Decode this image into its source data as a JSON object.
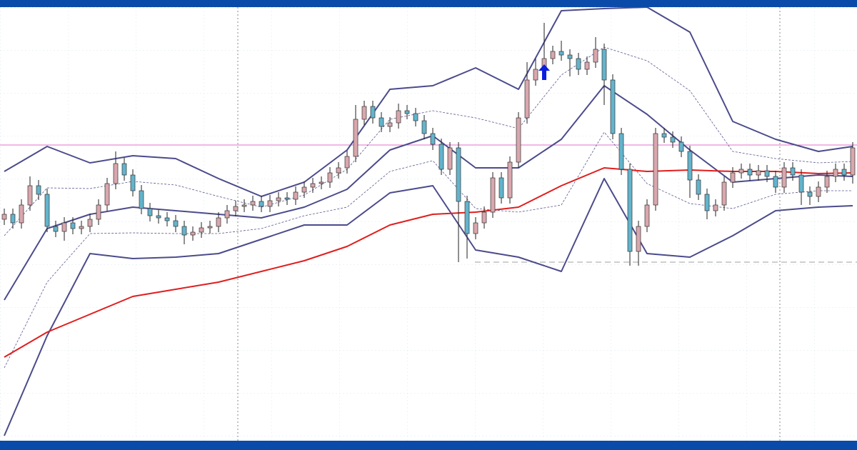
{
  "chart_data": {
    "type": "candlestick",
    "ylim": [
      0,
      607
    ],
    "open": [
      310,
      317,
      305,
      330,
      357,
      345,
      300,
      293,
      305,
      297,
      300,
      310,
      330,
      360,
      388,
      372,
      350,
      325,
      315,
      312,
      308,
      300,
      288,
      292,
      298,
      300,
      312,
      322,
      328,
      330,
      335,
      328,
      336,
      340,
      338,
      348,
      355,
      360,
      362,
      375,
      382,
      398,
      450,
      468,
      452,
      440,
      445,
      462,
      458,
      448,
      430,
      415,
      380,
      410,
      335,
      290,
      305,
      320,
      368,
      340,
      390,
      452,
      505,
      520,
      535,
      545,
      540,
      535,
      520,
      530,
      548,
      505,
      430,
      380,
      265,
      300,
      330,
      430,
      425,
      418,
      405,
      365,
      345,
      322,
      330,
      362,
      375,
      380,
      372,
      378,
      370,
      355,
      382,
      372,
      348,
      342,
      355,
      370,
      380,
      372
    ],
    "high": [
      325,
      325,
      338,
      370,
      365,
      353,
      308,
      313,
      313,
      308,
      318,
      338,
      368,
      405,
      396,
      380,
      358,
      333,
      323,
      320,
      316,
      308,
      300,
      306,
      308,
      320,
      330,
      336,
      338,
      343,
      343,
      344,
      348,
      348,
      356,
      363,
      368,
      370,
      383,
      390,
      406,
      470,
      476,
      476,
      460,
      453,
      472,
      470,
      466,
      456,
      438,
      423,
      418,
      418,
      343,
      313,
      328,
      376,
      376,
      398,
      460,
      530,
      535,
      585,
      553,
      560,
      548,
      543,
      538,
      565,
      556,
      513,
      438,
      388,
      308,
      338,
      438,
      438,
      433,
      426,
      413,
      373,
      353,
      338,
      370,
      383,
      388,
      388,
      386,
      386,
      378,
      390,
      390,
      380,
      356,
      363,
      378,
      388,
      388,
      418
    ],
    "low": [
      302,
      297,
      297,
      322,
      337,
      292,
      285,
      280,
      289,
      289,
      292,
      302,
      322,
      352,
      364,
      342,
      317,
      307,
      304,
      300,
      292,
      275,
      280,
      284,
      290,
      292,
      304,
      314,
      320,
      322,
      320,
      320,
      328,
      330,
      330,
      340,
      347,
      352,
      354,
      367,
      374,
      390,
      442,
      444,
      432,
      432,
      437,
      450,
      440,
      422,
      407,
      372,
      372,
      250,
      255,
      282,
      297,
      312,
      332,
      332,
      382,
      444,
      497,
      512,
      527,
      532,
      510,
      512,
      512,
      522,
      470,
      422,
      372,
      245,
      245,
      292,
      322,
      417,
      410,
      397,
      340,
      337,
      310,
      314,
      322,
      354,
      367,
      364,
      364,
      362,
      347,
      347,
      364,
      330,
      330,
      334,
      347,
      362,
      364,
      360
    ],
    "close": [
      317,
      305,
      330,
      357,
      345,
      300,
      293,
      305,
      297,
      300,
      310,
      330,
      360,
      388,
      372,
      350,
      325,
      315,
      312,
      308,
      300,
      288,
      292,
      298,
      300,
      312,
      322,
      328,
      330,
      335,
      328,
      336,
      340,
      338,
      348,
      355,
      360,
      362,
      375,
      382,
      398,
      450,
      468,
      452,
      440,
      445,
      462,
      458,
      448,
      430,
      415,
      380,
      410,
      335,
      290,
      305,
      320,
      368,
      340,
      390,
      452,
      505,
      520,
      535,
      545,
      540,
      535,
      520,
      530,
      548,
      505,
      430,
      380,
      265,
      300,
      330,
      430,
      425,
      418,
      405,
      365,
      345,
      322,
      330,
      362,
      375,
      380,
      372,
      378,
      370,
      355,
      382,
      372,
      348,
      342,
      355,
      370,
      380,
      372,
      410
    ],
    "up_color": "#d9a7ae",
    "down_color": "#63b4cc",
    "lines": [
      {
        "color": "#4b4b8c",
        "width": 2,
        "x": [
          0,
          5,
          10,
          15,
          20,
          25,
          30,
          35,
          40,
          45,
          50,
          55,
          60,
          65,
          70,
          75,
          80,
          85,
          90,
          95,
          99
        ],
        "values": [
          377,
          412,
          389,
          399,
          395,
          367,
          342,
          362,
          407,
          492,
          497,
          522,
          492,
          602,
          605,
          607,
          572,
          447,
          422,
          405,
          412
        ]
      },
      {
        "color": "#4b4b8c",
        "width": 2,
        "x": [
          0,
          5,
          10,
          15,
          20,
          25,
          30,
          35,
          40,
          45,
          50,
          55,
          60,
          65,
          70,
          75,
          80,
          85,
          90,
          95,
          99
        ],
        "values": [
          197,
          297,
          317,
          327,
          322,
          317,
          312,
          327,
          352,
          407,
          427,
          382,
          382,
          422,
          497,
          457,
          407,
          362,
          367,
          372,
          370
        ]
      },
      {
        "color": "#4b4b8c",
        "width": 2,
        "x": [
          0,
          5,
          10,
          15,
          20,
          25,
          30,
          35,
          40,
          45,
          50,
          55,
          60,
          65,
          70,
          75,
          80,
          85,
          90,
          95,
          99
        ],
        "values": [
          7,
          147,
          262,
          255,
          257,
          262,
          282,
          302,
          302,
          347,
          357,
          267,
          257,
          237,
          367,
          262,
          257,
          287,
          322,
          327,
          329
        ]
      },
      {
        "color": "#5a5a90",
        "width": 0.8,
        "dashed": true,
        "x": [
          0,
          5,
          10,
          15,
          20,
          25,
          30,
          35,
          40,
          45,
          50,
          55,
          60,
          65,
          70,
          75,
          80,
          85,
          90,
          95,
          99
        ],
        "values": [
          287,
          354,
          353,
          363,
          358,
          342,
          327,
          344,
          380,
          450,
          462,
          452,
          437,
          512,
          551,
          532,
          490,
          405,
          395,
          389,
          391
        ]
      },
      {
        "color": "#5a5a90",
        "width": 0.8,
        "dashed": true,
        "x": [
          0,
          5,
          10,
          15,
          20,
          25,
          30,
          35,
          40,
          45,
          50,
          55,
          60,
          65,
          70,
          75,
          80,
          85,
          90,
          95,
          99
        ],
        "values": [
          102,
          222,
          290,
          291,
          290,
          290,
          297,
          315,
          327,
          377,
          392,
          325,
          320,
          330,
          432,
          360,
          332,
          325,
          345,
          350,
          350
        ]
      },
      {
        "color": "#e01e1e",
        "width": 2,
        "x": [
          0,
          5,
          10,
          15,
          20,
          25,
          30,
          35,
          40,
          45,
          50,
          55,
          60,
          65,
          70,
          75,
          80,
          85,
          90,
          95,
          99
        ],
        "values": [
          117,
          152,
          177,
          202,
          212,
          222,
          237,
          252,
          272,
          302,
          317,
          320,
          327,
          357,
          382,
          377,
          379,
          377,
          377,
          374,
          375
        ]
      }
    ],
    "levels": [
      {
        "value": 414,
        "color": "#e070c8"
      },
      {
        "value": 250,
        "color": "#a0a0a0",
        "dashed": true,
        "from": 55
      }
    ],
    "signal": {
      "index": 63,
      "value": 527,
      "color": "#0a1ee0"
    }
  }
}
